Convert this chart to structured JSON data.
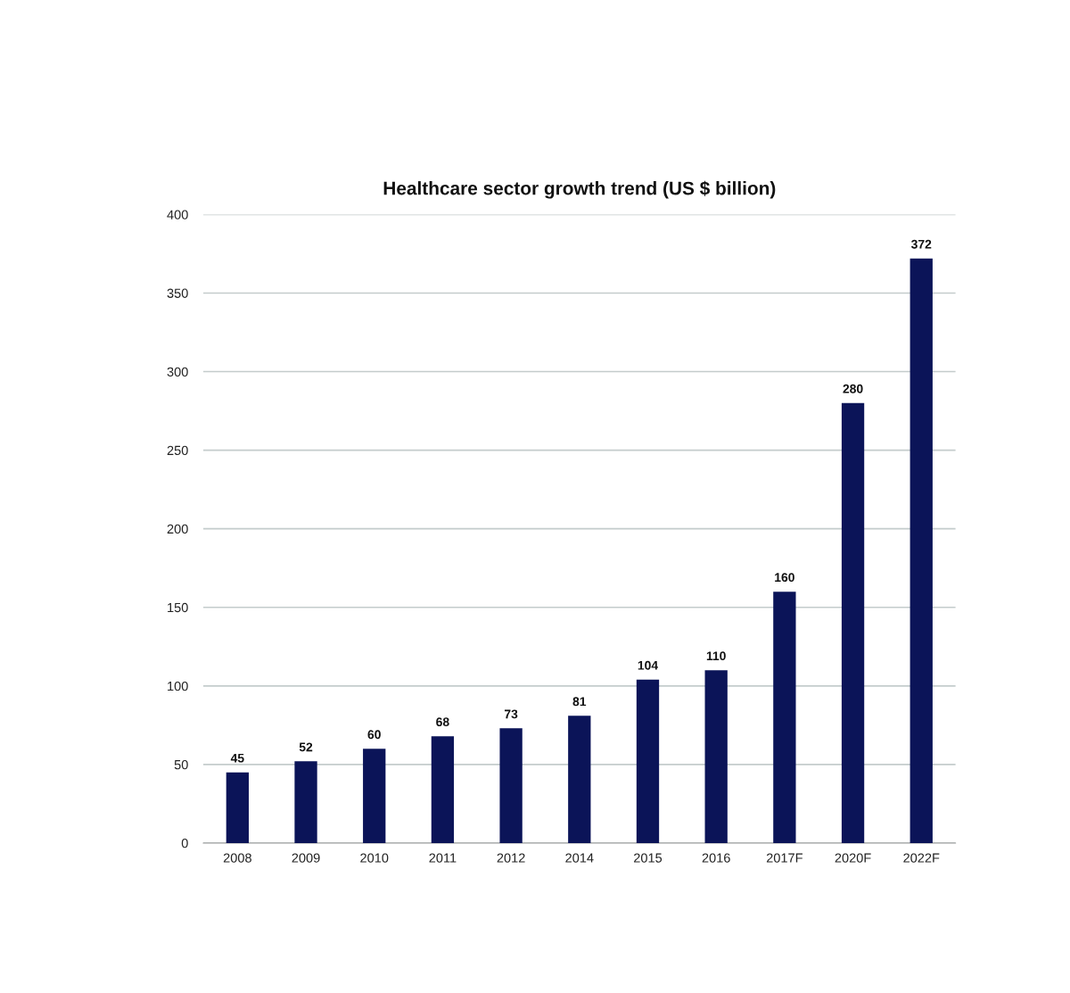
{
  "chart_data": {
    "type": "bar",
    "title": "Healthcare sector growth trend (US $ billion)",
    "categories": [
      "2008",
      "2009",
      "2010",
      "2011",
      "2012",
      "2014",
      "2015",
      "2016",
      "2017F",
      "2020F",
      "2022F"
    ],
    "values": [
      45,
      52,
      60,
      68,
      73,
      81,
      104,
      110,
      160,
      280,
      372
    ],
    "color": "#0b1458",
    "ylim": [
      0,
      400
    ],
    "yticks": [
      0,
      50,
      100,
      150,
      200,
      250,
      300,
      350,
      400
    ],
    "grid": "y",
    "data_labels": true
  }
}
